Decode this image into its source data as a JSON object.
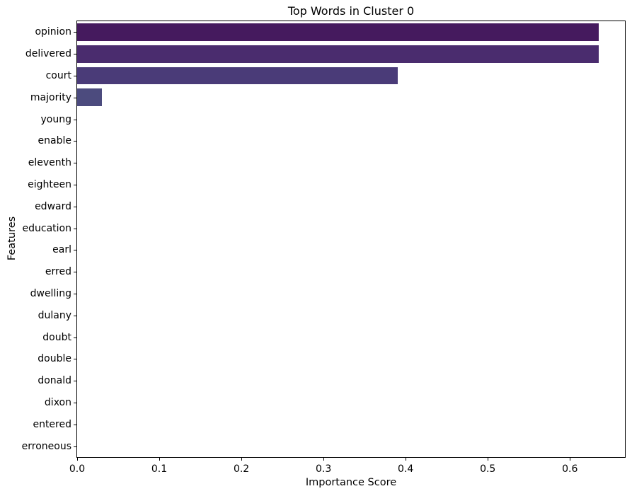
{
  "chart_data": {
    "type": "bar",
    "orientation": "horizontal",
    "title": "Top Words in Cluster 0",
    "xlabel": "Importance Score",
    "ylabel": "Features",
    "categories": [
      "opinion",
      "delivered",
      "court",
      "majority",
      "young",
      "enable",
      "eleventh",
      "eighteen",
      "edward",
      "education",
      "earl",
      "erred",
      "dwelling",
      "dulany",
      "doubt",
      "double",
      "donald",
      "dixon",
      "entered",
      "erroneous"
    ],
    "values": [
      0.635,
      0.635,
      0.39,
      0.03,
      0,
      0,
      0,
      0,
      0,
      0,
      0,
      0,
      0,
      0,
      0,
      0,
      0,
      0,
      0,
      0
    ],
    "bar_colors": [
      "#451a5e",
      "#4a2c6e",
      "#4a3b78",
      "#4c4b7e",
      "#4b5a80",
      "#476982",
      "#417780",
      "#3c847c",
      "#389176",
      "#3a9e6e",
      "#46a963",
      "#57b357",
      "#6cbc4b",
      "#84c440",
      "#9dca37",
      "#b7cf33",
      "#cfd336",
      "#e3d63e",
      "#f1d947",
      "#f9dc4f"
    ],
    "xlim": [
      0,
      0.667
    ],
    "xticks": [
      0.0,
      0.1,
      0.2,
      0.3,
      0.4,
      0.5,
      0.6
    ],
    "xtick_labels": [
      "0.0",
      "0.1",
      "0.2",
      "0.3",
      "0.4",
      "0.5",
      "0.6"
    ],
    "grid": false,
    "legend": null,
    "background_color": "#ffffff",
    "spine_color": "#000000",
    "text_color": "#000000"
  }
}
